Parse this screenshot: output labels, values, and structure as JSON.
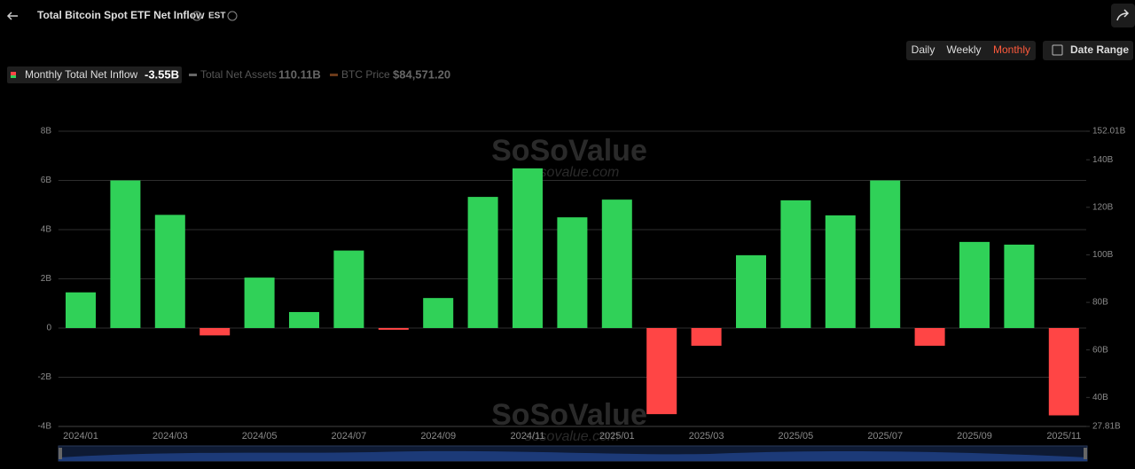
{
  "header": {
    "title": "Total Bitcoin Spot ETF Net Inflow",
    "timezone": "EST"
  },
  "controls": {
    "periods": [
      "Daily",
      "Weekly",
      "Monthly"
    ],
    "active_period": 2,
    "date_range": "Date Range"
  },
  "legend": [
    {
      "label": "Monthly Total Net Inflow",
      "value": "-3.55B"
    },
    {
      "label": "Total Net Assets",
      "value": "110.11B"
    },
    {
      "label": "BTC Price",
      "value": "$84,571.20"
    }
  ],
  "watermark": {
    "brand": "SoSoValue",
    "site": "sosovalue.com"
  },
  "chart_data": {
    "type": "bar",
    "categories": [
      "2024/01",
      null,
      "2024/03",
      null,
      "2024/05",
      null,
      "2024/07",
      null,
      "2024/09",
      null,
      "2024/11",
      null,
      "2025/01",
      null,
      "2025/03",
      null,
      "2025/05",
      null,
      "2025/07",
      null,
      "2025/09",
      null,
      "2025/11"
    ],
    "values": [
      1.45,
      6.0,
      4.6,
      -0.3,
      2.05,
      0.65,
      3.15,
      -0.07,
      1.22,
      5.33,
      6.49,
      4.5,
      5.22,
      -3.5,
      -0.72,
      2.96,
      5.19,
      4.58,
      6.0,
      -0.72,
      3.5,
      3.39,
      -3.55
    ],
    "positive_color": "#30d158",
    "negative_color": "#ff4545",
    "ylim": [
      -4,
      8
    ],
    "yticks": [
      {
        "value": -4,
        "label": "-4B"
      },
      {
        "value": -2,
        "label": "-2B"
      },
      0,
      {
        "value": 2,
        "label": "2B"
      },
      {
        "value": 4,
        "label": "4B"
      },
      {
        "value": 6,
        "label": "6B"
      },
      {
        "value": 8,
        "label": "8B"
      }
    ],
    "y2lim": [
      27.81,
      152.01
    ],
    "y2ticks": [
      {
        "value": 27.81,
        "label": "27.81B"
      },
      {
        "value": 40,
        "label": "40B"
      },
      {
        "value": 60,
        "label": "60B"
      },
      {
        "value": 80,
        "label": "80B"
      },
      {
        "value": 100,
        "label": "100B"
      },
      {
        "value": 120,
        "label": "120B"
      },
      {
        "value": 140,
        "label": "140B"
      },
      {
        "value": 152.01,
        "label": "152.01B"
      }
    ],
    "grid": true
  }
}
